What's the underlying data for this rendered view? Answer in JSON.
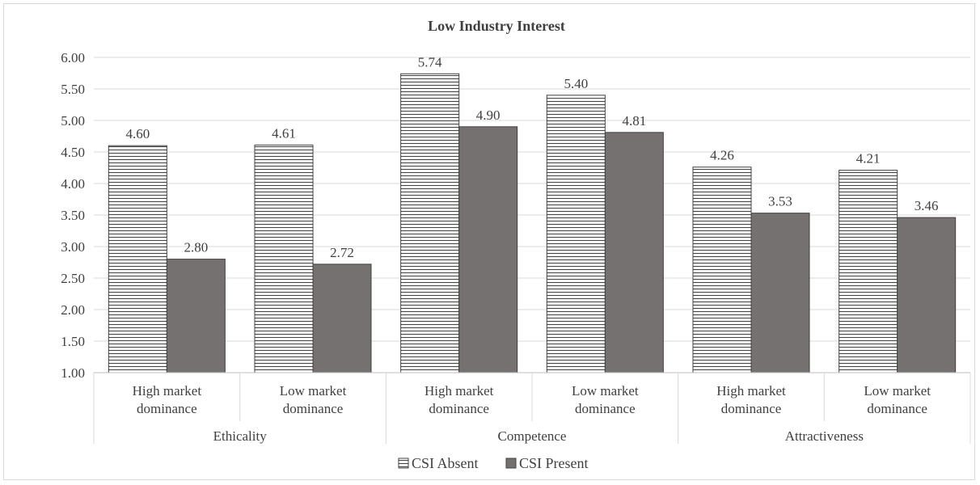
{
  "chart_data": {
    "type": "bar",
    "title": "Low  Industry   Interest",
    "xlabel": "",
    "ylabel": "",
    "ylim": [
      1.0,
      6.0
    ],
    "yticks": [
      "1.00",
      "1.50",
      "2.00",
      "2.50",
      "3.00",
      "3.50",
      "4.00",
      "4.50",
      "5.00",
      "5.50",
      "6.00"
    ],
    "grid": true,
    "legend_position": "bottom",
    "groups": [
      {
        "label": "Ethicality",
        "categories": [
          [
            "High market",
            "dominance"
          ],
          [
            "Low market",
            "dominance"
          ]
        ]
      },
      {
        "label": "Competence",
        "categories": [
          [
            "High market",
            "dominance"
          ],
          [
            "Low market",
            "dominance"
          ]
        ]
      },
      {
        "label": "Attractiveness",
        "categories": [
          [
            "High market",
            "dominance"
          ],
          [
            "Low market",
            "dominance"
          ]
        ]
      }
    ],
    "series": [
      {
        "name": "CSI Absent",
        "pattern": "horizontal-stripes",
        "color": "#ffffff",
        "stroke": "#404040",
        "values": [
          4.6,
          4.61,
          5.74,
          5.4,
          4.26,
          4.21
        ],
        "labels": [
          "4.60",
          "4.61",
          "5.74",
          "5.40",
          "4.26",
          "4.21"
        ]
      },
      {
        "name": "CSI Present",
        "pattern": "solid",
        "color": "#767171",
        "stroke": "#404040",
        "values": [
          2.8,
          2.72,
          4.9,
          4.81,
          3.53,
          3.46
        ],
        "labels": [
          "2.80",
          "2.72",
          "4.90",
          "4.81",
          "3.53",
          "3.46"
        ]
      }
    ]
  }
}
